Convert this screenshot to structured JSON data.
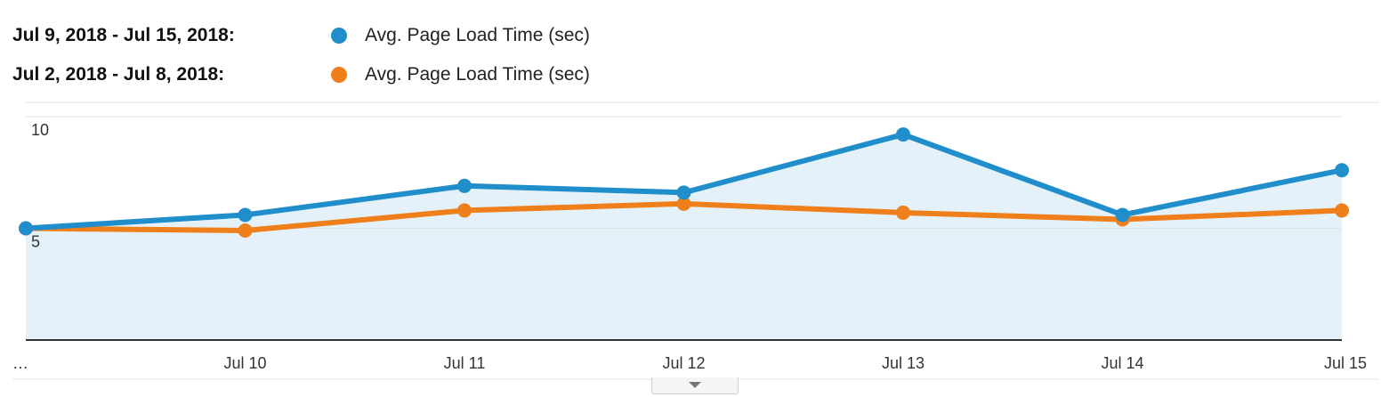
{
  "legend": {
    "current_range": "Jul 9, 2018 - Jul 15, 2018:",
    "previous_range": "Jul 2, 2018 - Jul 8, 2018:",
    "current_metric": "Avg. Page Load Time (sec)",
    "previous_metric": "Avg. Page Load Time (sec)"
  },
  "colors": {
    "current": "#1f8ecb",
    "previous": "#ef7f1a",
    "area_fill": "#e4f1f8",
    "gridline": "#e4e4e4",
    "axis": "#333333"
  },
  "icons": {
    "expand": "chevron-down-icon"
  },
  "chart_data": {
    "type": "line",
    "categories": [
      "…",
      "Jul 10",
      "Jul 11",
      "Jul 12",
      "Jul 13",
      "Jul 14",
      "Jul 15"
    ],
    "series": [
      {
        "name": "Avg. Page Load Time (sec)",
        "date_range": "Jul 9, 2018 - Jul 15, 2018",
        "values": [
          5.0,
          5.6,
          6.9,
          6.6,
          9.2,
          5.6,
          7.6
        ],
        "style": "area"
      },
      {
        "name": "Avg. Page Load Time (sec)",
        "date_range": "Jul 2, 2018 - Jul 8, 2018",
        "values": [
          5.0,
          4.9,
          5.8,
          6.1,
          5.7,
          5.4,
          5.8
        ],
        "style": "line"
      }
    ],
    "yticks": [
      5,
      10
    ],
    "ytick_labels": [
      "5",
      "10"
    ],
    "ylim": [
      0,
      10.5
    ],
    "grid": true,
    "legend_position": "top-left"
  }
}
